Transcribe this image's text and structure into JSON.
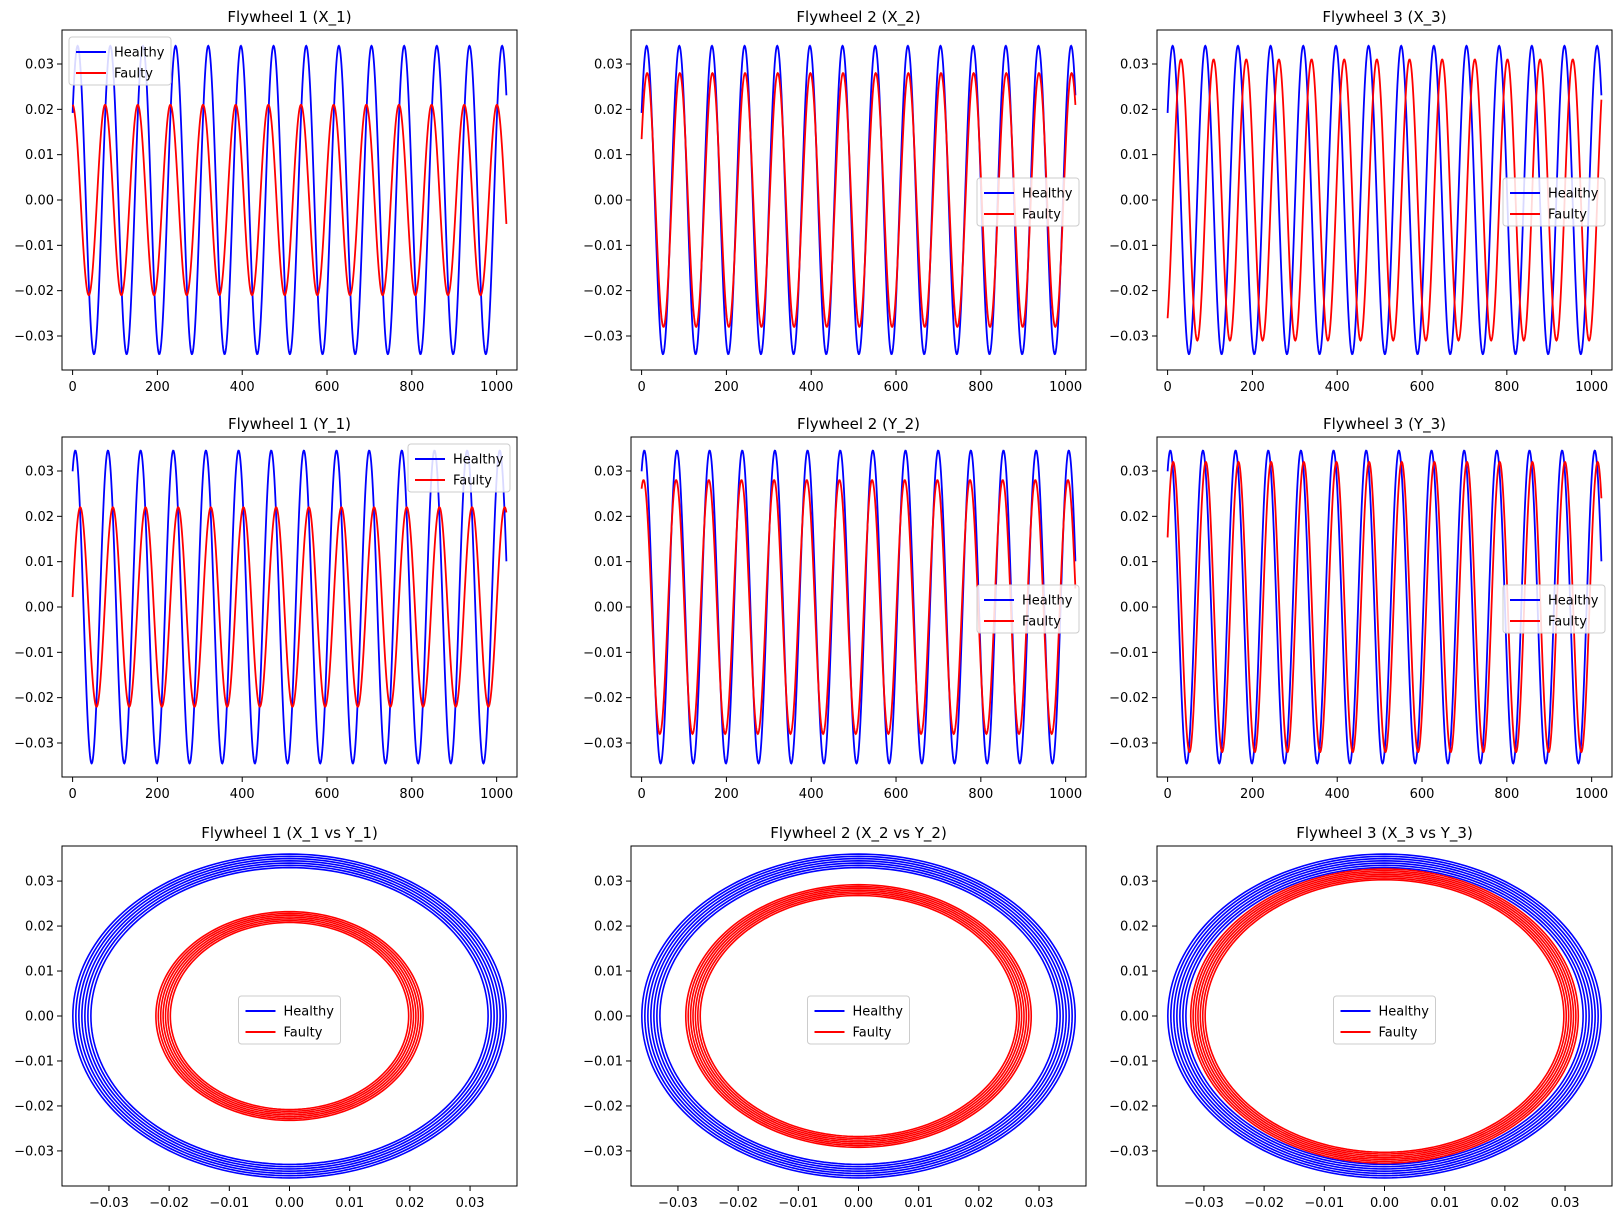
{
  "colors": {
    "healthy": "#0000ff",
    "faulty": "#ff0000"
  },
  "legend": {
    "healthy_label": "Healthy",
    "faulty_label": "Faulty"
  },
  "chart_data": [
    {
      "type": "line",
      "title": "Flywheel 1 (X_1)",
      "xlim": [
        -25,
        1048
      ],
      "ylim": [
        -0.0375,
        0.0375
      ],
      "xticks": [
        0,
        200,
        400,
        600,
        800,
        1000
      ],
      "xtick_labels": [
        "0",
        "200",
        "400",
        "600",
        "800",
        "1000"
      ],
      "yticks": [
        -0.03,
        -0.02,
        -0.01,
        0.0,
        0.01,
        0.02,
        0.03
      ],
      "ytick_labels": [
        "−0.03",
        "−0.02",
        "−0.01",
        "0.00",
        "0.01",
        "0.02",
        "0.03"
      ],
      "legend_loc": "upper left",
      "series": [
        {
          "name": "Healthy",
          "amplitude": 0.034,
          "period": 77,
          "phase0": 0.6,
          "n": 1024
        },
        {
          "name": "Faulty",
          "amplitude": 0.021,
          "period": 77,
          "phase0": 1.6,
          "n": 1024
        }
      ]
    },
    {
      "type": "line",
      "title": "Flywheel 2 (X_2)",
      "xlim": [
        -25,
        1048
      ],
      "ylim": [
        -0.0375,
        0.0375
      ],
      "xticks": [
        0,
        200,
        400,
        600,
        800,
        1000
      ],
      "xtick_labels": [
        "0",
        "200",
        "400",
        "600",
        "800",
        "1000"
      ],
      "yticks": [
        -0.03,
        -0.02,
        -0.01,
        0.0,
        0.01,
        0.02,
        0.03
      ],
      "ytick_labels": [
        "−0.03",
        "−0.02",
        "−0.01",
        "0.00",
        "0.01",
        "0.02",
        "0.03"
      ],
      "legend_loc": "center right",
      "series": [
        {
          "name": "Healthy",
          "amplitude": 0.034,
          "period": 77,
          "phase0": 0.6,
          "n": 1024
        },
        {
          "name": "Faulty",
          "amplitude": 0.028,
          "period": 77,
          "phase0": 0.5,
          "n": 1024
        }
      ]
    },
    {
      "type": "line",
      "title": "Flywheel 3 (X_3)",
      "xlim": [
        -25,
        1048
      ],
      "ylim": [
        -0.0375,
        0.0375
      ],
      "xticks": [
        0,
        200,
        400,
        600,
        800,
        1000
      ],
      "xtick_labels": [
        "0",
        "200",
        "400",
        "600",
        "800",
        "1000"
      ],
      "yticks": [
        -0.03,
        -0.02,
        -0.01,
        0.0,
        0.01,
        0.02,
        0.03
      ],
      "ytick_labels": [
        "−0.03",
        "−0.02",
        "−0.01",
        "0.00",
        "0.01",
        "0.02",
        "0.03"
      ],
      "legend_loc": "center right",
      "series": [
        {
          "name": "Healthy",
          "amplitude": 0.034,
          "period": 77,
          "phase0": 0.6,
          "n": 1024
        },
        {
          "name": "Faulty",
          "amplitude": 0.031,
          "period": 77,
          "phase0": -1.0,
          "n": 1024
        }
      ]
    },
    {
      "type": "line",
      "title": "Flywheel 1 (Y_1)",
      "xlim": [
        -25,
        1048
      ],
      "ylim": [
        -0.0375,
        0.0375
      ],
      "xticks": [
        0,
        200,
        400,
        600,
        800,
        1000
      ],
      "xtick_labels": [
        "0",
        "200",
        "400",
        "600",
        "800",
        "1000"
      ],
      "yticks": [
        -0.03,
        -0.02,
        -0.01,
        0.0,
        0.01,
        0.02,
        0.03
      ],
      "ytick_labels": [
        "−0.03",
        "−0.02",
        "−0.01",
        "0.00",
        "0.01",
        "0.02",
        "0.03"
      ],
      "legend_loc": "upper right",
      "series": [
        {
          "name": "Healthy",
          "amplitude": 0.0345,
          "period": 77,
          "phase0": 1.05,
          "n": 1024
        },
        {
          "name": "Faulty",
          "amplitude": 0.022,
          "period": 77,
          "phase0": 0.1,
          "n": 1024
        }
      ]
    },
    {
      "type": "line",
      "title": "Flywheel 2 (Y_2)",
      "xlim": [
        -25,
        1048
      ],
      "ylim": [
        -0.0375,
        0.0375
      ],
      "xticks": [
        0,
        200,
        400,
        600,
        800,
        1000
      ],
      "xtick_labels": [
        "0",
        "200",
        "400",
        "600",
        "800",
        "1000"
      ],
      "yticks": [
        -0.03,
        -0.02,
        -0.01,
        0.0,
        0.01,
        0.02,
        0.03
      ],
      "ytick_labels": [
        "−0.03",
        "−0.02",
        "−0.01",
        "0.00",
        "0.01",
        "0.02",
        "0.03"
      ],
      "legend_loc": "center right",
      "series": [
        {
          "name": "Healthy",
          "amplitude": 0.0345,
          "period": 77,
          "phase0": 1.05,
          "n": 1024
        },
        {
          "name": "Faulty",
          "amplitude": 0.028,
          "period": 77,
          "phase0": 1.2,
          "n": 1024
        }
      ]
    },
    {
      "type": "line",
      "title": "Flywheel 3 (Y_3)",
      "xlim": [
        -25,
        1048
      ],
      "ylim": [
        -0.0375,
        0.0375
      ],
      "xticks": [
        0,
        200,
        400,
        600,
        800,
        1000
      ],
      "xtick_labels": [
        "0",
        "200",
        "400",
        "600",
        "800",
        "1000"
      ],
      "yticks": [
        -0.03,
        -0.02,
        -0.01,
        0.0,
        0.01,
        0.02,
        0.03
      ],
      "ytick_labels": [
        "−0.03",
        "−0.02",
        "−0.01",
        "0.00",
        "0.01",
        "0.02",
        "0.03"
      ],
      "legend_loc": "center right",
      "series": [
        {
          "name": "Healthy",
          "amplitude": 0.0345,
          "period": 77,
          "phase0": 1.05,
          "n": 1024
        },
        {
          "name": "Faulty",
          "amplitude": 0.032,
          "period": 77,
          "phase0": 0.5,
          "n": 1024
        }
      ]
    },
    {
      "type": "scatter",
      "title": "Flywheel 1 (X_1 vs Y_1)",
      "xlim": [
        -0.0378,
        0.0378
      ],
      "ylim": [
        -0.0378,
        0.0378
      ],
      "xticks": [
        -0.03,
        -0.02,
        -0.01,
        0.0,
        0.01,
        0.02,
        0.03
      ],
      "xtick_labels": [
        "−0.03",
        "−0.02",
        "−0.01",
        "0.00",
        "0.01",
        "0.02",
        "0.03"
      ],
      "yticks": [
        -0.03,
        -0.02,
        -0.01,
        0.0,
        0.01,
        0.02,
        0.03
      ],
      "ytick_labels": [
        "−0.03",
        "−0.02",
        "−0.01",
        "0.00",
        "0.01",
        "0.02",
        "0.03"
      ],
      "legend_loc": "center",
      "series": [
        {
          "name": "Healthy",
          "rx": 0.0345,
          "ry": 0.0345,
          "cx": 0.0,
          "cy": 0.0,
          "thickness": 0.0015
        },
        {
          "name": "Faulty",
          "rx": 0.021,
          "ry": 0.022,
          "cx": 0.0,
          "cy": 0.0,
          "thickness": 0.0012
        }
      ]
    },
    {
      "type": "scatter",
      "title": "Flywheel 2 (X_2 vs Y_2)",
      "xlim": [
        -0.0378,
        0.0378
      ],
      "ylim": [
        -0.0378,
        0.0378
      ],
      "xticks": [
        -0.03,
        -0.02,
        -0.01,
        0.0,
        0.01,
        0.02,
        0.03
      ],
      "xtick_labels": [
        "−0.03",
        "−0.02",
        "−0.01",
        "0.00",
        "0.01",
        "0.02",
        "0.03"
      ],
      "yticks": [
        -0.03,
        -0.02,
        -0.01,
        0.0,
        0.01,
        0.02,
        0.03
      ],
      "ytick_labels": [
        "−0.03",
        "−0.02",
        "−0.01",
        "0.00",
        "0.01",
        "0.02",
        "0.03"
      ],
      "legend_loc": "center",
      "series": [
        {
          "name": "Healthy",
          "rx": 0.0345,
          "ry": 0.0345,
          "cx": 0.0,
          "cy": 0.0,
          "thickness": 0.0015
        },
        {
          "name": "Faulty",
          "rx": 0.0275,
          "ry": 0.028,
          "cx": 0.0,
          "cy": 0.0,
          "thickness": 0.0012
        }
      ]
    },
    {
      "type": "scatter",
      "title": "Flywheel 3 (X_3 vs Y_3)",
      "xlim": [
        -0.0378,
        0.0378
      ],
      "ylim": [
        -0.0378,
        0.0378
      ],
      "xticks": [
        -0.03,
        -0.02,
        -0.01,
        0.0,
        0.01,
        0.02,
        0.03
      ],
      "xtick_labels": [
        "−0.03",
        "−0.02",
        "−0.01",
        "0.00",
        "0.01",
        "0.02",
        "0.03"
      ],
      "yticks": [
        -0.03,
        -0.02,
        -0.01,
        0.0,
        0.01,
        0.02,
        0.03
      ],
      "ytick_labels": [
        "−0.03",
        "−0.02",
        "−0.01",
        "0.00",
        "0.01",
        "0.02",
        "0.03"
      ],
      "legend_loc": "center",
      "series": [
        {
          "name": "Healthy",
          "rx": 0.0345,
          "ry": 0.0345,
          "cx": 0.0,
          "cy": 0.0,
          "thickness": 0.0015
        },
        {
          "name": "Faulty",
          "rx": 0.031,
          "ry": 0.0315,
          "cx": 0.0,
          "cy": 0.0,
          "thickness": 0.0012
        }
      ]
    }
  ]
}
